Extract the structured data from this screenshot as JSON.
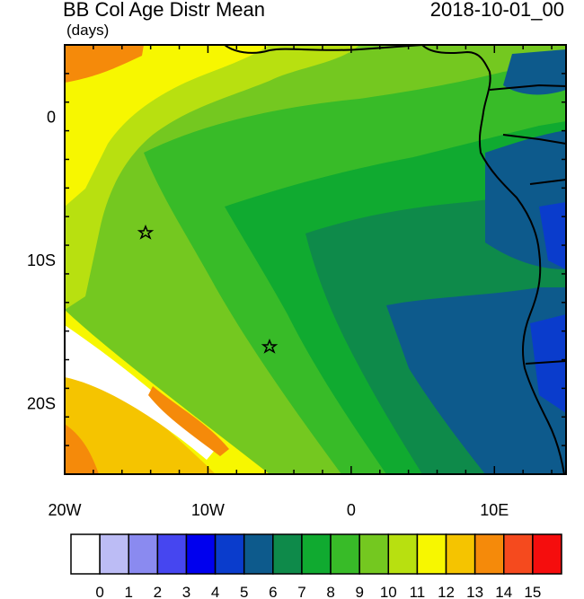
{
  "header": {
    "title": "BB Col Age Distr Mean",
    "units": "(days)",
    "timestamp": "2018-10-01_00"
  },
  "map": {
    "region": "Southeast Atlantic / West Africa",
    "lon_range": [
      -20,
      15
    ],
    "lat_range": [
      -25,
      5
    ],
    "x_ticks": [
      {
        "value": -20,
        "label": "20W"
      },
      {
        "value": -10,
        "label": "10W"
      },
      {
        "value": 0,
        "label": "0"
      },
      {
        "value": 10,
        "label": "10E"
      }
    ],
    "y_ticks": [
      {
        "value": 0,
        "label": "0"
      },
      {
        "value": -10,
        "label": "10S"
      },
      {
        "value": -20,
        "label": "20S"
      }
    ],
    "markers": [
      {
        "name": "star",
        "lon": -14.4,
        "lat": -8.0
      },
      {
        "name": "star",
        "lon": -5.7,
        "lat": -16.0
      }
    ]
  },
  "colorbar": {
    "colors": [
      "#ffffff",
      "#bcbcf5",
      "#8a8af0",
      "#4646f0",
      "#0000ee",
      "#0a3ccc",
      "#0d5a8c",
      "#0e8a4a",
      "#10aa30",
      "#38bb28",
      "#74c820",
      "#b8e010",
      "#f7f700",
      "#f5c400",
      "#f58a0a",
      "#f54a1e",
      "#f50d0d"
    ],
    "labels": [
      "0",
      "1",
      "2",
      "3",
      "4",
      "5",
      "6",
      "7",
      "8",
      "9",
      "10",
      "11",
      "12",
      "13",
      "14",
      "15"
    ]
  }
}
